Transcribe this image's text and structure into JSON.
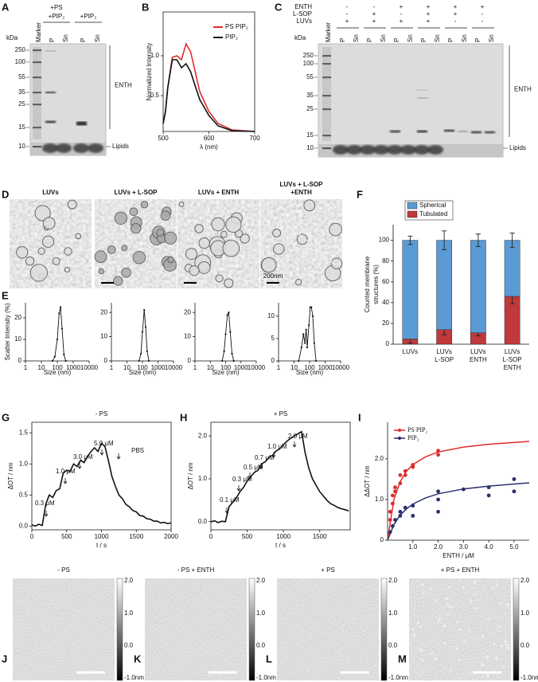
{
  "panels": {
    "A": {
      "label": "A",
      "units": "kDa",
      "markers": [
        250,
        100,
        55,
        35,
        25,
        15,
        10
      ],
      "groups": [
        [
          "+PS",
          "+PIP₂"
        ],
        [
          "+PIP₂"
        ]
      ],
      "lanes": [
        "Marker",
        "P",
        "Sn",
        "P",
        "Sn"
      ],
      "bracket_label": "ENTH",
      "lipids_label": "Lipids"
    },
    "C": {
      "label": "C",
      "units": "kDa",
      "markers": [
        250,
        100,
        55,
        35,
        25,
        15,
        10
      ],
      "conditions": [
        {
          "name": "ENTH",
          "signs": [
            "-",
            "-",
            "+",
            "+",
            "+",
            "+"
          ]
        },
        {
          "name": "L-SOP",
          "signs": [
            "-",
            "+",
            "-",
            "+",
            "+",
            "-"
          ]
        },
        {
          "name": "LUVs",
          "signs": [
            "+",
            "+",
            "+",
            "+",
            "-",
            "-"
          ]
        }
      ],
      "lanes": [
        "Marker",
        "P",
        "Sn",
        "P",
        "Sn",
        "P",
        "Sn",
        "P",
        "Sn",
        "P",
        "Sn",
        "P",
        "Sn"
      ],
      "bracket_label": "ENTH",
      "lipids_label": "Lipids"
    },
    "D": {
      "label": "D",
      "images": [
        [
          "LUVs"
        ],
        [
          "LUVs + L-SOP"
        ],
        [
          "LUVs + ENTH"
        ],
        [
          "LUVs + L-SOP",
          "+ENTH"
        ]
      ],
      "scale_bar": "200nm"
    },
    "JM": {
      "images": [
        {
          "label": "J",
          "title": "- PS"
        },
        {
          "label": "K",
          "title": "- PS + ENTH"
        },
        {
          "label": "L",
          "title": "+ PS"
        },
        {
          "label": "M",
          "title": "+ PS + ENTH"
        }
      ],
      "colorbar": [
        "2.0",
        "1.0",
        "0.0",
        "-1.0nm"
      ]
    }
  },
  "chart_data": [
    {
      "type": "line",
      "label": "B",
      "xlabel": "λ (nm)",
      "ylabel": "Normalized Intensity",
      "x": [
        500,
        505,
        510,
        520,
        530,
        540,
        550,
        560,
        570,
        580,
        600,
        620,
        650,
        700
      ],
      "series": [
        {
          "name": "PS PIP₂",
          "color": "#e02b2b",
          "values": [
            0.15,
            0.3,
            0.6,
            0.98,
            1.0,
            0.95,
            1.15,
            1.05,
            0.8,
            0.55,
            0.3,
            0.15,
            0.07,
            0.05
          ]
        },
        {
          "name": "PIP₂",
          "color": "#111111",
          "values": [
            0.15,
            0.3,
            0.6,
            0.95,
            0.95,
            0.85,
            0.9,
            0.8,
            0.62,
            0.45,
            0.25,
            0.12,
            0.06,
            0.05
          ]
        }
      ],
      "xlim": [
        500,
        700
      ],
      "ylim": [
        0.05,
        1.55
      ],
      "xticks": [
        500,
        600,
        700
      ],
      "yticks": [
        0.5,
        {
          "value": 1,
          "label": "1.0"
        }
      ]
    },
    {
      "type": "line",
      "label": "E",
      "xscale": "log",
      "markers": true,
      "xlabel": "Size (nm)",
      "ylabel": "Scatter Intensity (%)",
      "x": [
        50,
        70,
        100,
        130,
        160,
        200,
        260,
        340
      ],
      "series": [
        {
          "color": "#111111",
          "values": [
            0,
            2,
            10,
            22,
            25,
            15,
            3,
            0
          ]
        }
      ],
      "xlim": [
        1,
        10000
      ],
      "ylim": [
        0,
        27
      ],
      "xticks": [
        1,
        10,
        100,
        1000,
        10000
      ],
      "yticks": [
        0,
        10,
        20
      ]
    },
    {
      "type": "line",
      "xscale": "log",
      "markers": true,
      "xlabel": "Size (nm)",
      "x": [
        60,
        80,
        100,
        130,
        160,
        200,
        260
      ],
      "series": [
        {
          "color": "#111111",
          "values": [
            0,
            3,
            12,
            21,
            14,
            4,
            0
          ]
        }
      ],
      "xlim": [
        1,
        10000
      ],
      "ylim": [
        0,
        24
      ],
      "xticks": [
        1,
        10,
        100,
        1000,
        10000
      ],
      "yticks": [
        0,
        10,
        20
      ]
    },
    {
      "type": "line",
      "xscale": "log",
      "markers": true,
      "xlabel": "Size (nm)",
      "x": [
        60,
        80,
        100,
        130,
        160,
        200,
        260,
        340
      ],
      "series": [
        {
          "color": "#111111",
          "values": [
            0,
            4,
            11,
            19,
            20,
            12,
            3,
            0
          ]
        }
      ],
      "xlim": [
        1,
        10000
      ],
      "ylim": [
        0,
        24
      ],
      "xticks": [
        1,
        10,
        100,
        1000,
        10000
      ],
      "yticks": [
        0,
        10,
        20
      ]
    },
    {
      "type": "line",
      "xscale": "log",
      "markers": true,
      "xlabel": "Size (nm)",
      "x": [
        20,
        30,
        40,
        50,
        60,
        70,
        90,
        110,
        130,
        160,
        200,
        260
      ],
      "series": [
        {
          "color": "#111111",
          "values": [
            0,
            3,
            6,
            4,
            7,
            3,
            8,
            12,
            12,
            10,
            4,
            0
          ]
        }
      ],
      "xlim": [
        1,
        10000
      ],
      "ylim": [
        0,
        13
      ],
      "xticks": [
        1,
        10,
        100,
        1000,
        10000
      ],
      "yticks": [
        0,
        5,
        10
      ]
    },
    {
      "type": "stacked_bar",
      "label": "F",
      "ylabel": [
        "Counted membrane",
        "structures (%)"
      ],
      "categories": [
        [
          "LUVs"
        ],
        [
          "LUVs",
          "L-SOP"
        ],
        [
          "LUVs",
          "ENTH"
        ],
        [
          "LUVs",
          "L-SOP",
          "ENTH"
        ]
      ],
      "series": [
        {
          "name": "Spherical",
          "color": "#5b9bd5",
          "values": [
            95,
            86,
            89,
            54
          ],
          "errors": [
            4,
            9,
            6,
            7
          ]
        },
        {
          "name": "Tubulated",
          "color": "#c0393b",
          "values": [
            5,
            14,
            11,
            46
          ],
          "errors": [
            4,
            5,
            3,
            7
          ]
        }
      ],
      "ylim": [
        0,
        115
      ],
      "yticks": [
        0,
        20,
        40,
        60,
        80,
        100
      ]
    },
    {
      "type": "line",
      "label": "G",
      "title": "- PS",
      "xlabel": "t / s",
      "ylabel": "ΔOT / nm",
      "annotations": [
        "0.3 μM",
        "1.0 μM",
        "3.0 μM",
        "5.0 μM",
        "PBS"
      ],
      "x": [
        0,
        50,
        100,
        150,
        200,
        250,
        300,
        350,
        400,
        450,
        500,
        550,
        600,
        650,
        700,
        750,
        800,
        850,
        900,
        950,
        1000,
        1050,
        1100,
        1150,
        1200,
        1250,
        1300,
        1350,
        1400,
        1450,
        1500,
        1550,
        1600,
        1650,
        1700,
        1750,
        1800,
        1850,
        1900,
        1950,
        2000
      ],
      "series": [
        {
          "color": "#111111",
          "values": [
            0.02,
            0.0,
            0.03,
            0.01,
            0.35,
            0.5,
            0.46,
            0.57,
            0.6,
            0.85,
            0.9,
            0.88,
            1.0,
            0.96,
            1.06,
            1.02,
            1.12,
            1.2,
            1.26,
            1.2,
            1.33,
            1.28,
            1.05,
            0.8,
            0.64,
            0.5,
            0.44,
            0.35,
            0.31,
            0.25,
            0.23,
            0.17,
            0.16,
            0.12,
            0.11,
            0.08,
            0.08,
            0.05,
            0.06,
            0.04,
            0.05
          ]
        }
      ],
      "xlim": [
        0,
        2000
      ],
      "ylim": [
        -0.06,
        1.67
      ],
      "xticks": [
        0,
        500,
        1000,
        1500,
        2000
      ],
      "yticks": [
        {
          "value": 0,
          "label": "0.0"
        },
        0.5,
        {
          "value": 1,
          "label": "1.0"
        },
        1.5
      ]
    },
    {
      "type": "line",
      "label": "H",
      "title": "+ PS",
      "xlabel": "t / s",
      "ylabel": "ΔOT / nm",
      "annotations": [
        "0.1 μM",
        "0.3 μM",
        "0.5 μM",
        "0.7 μM",
        "1.0 μM",
        "2.0 μM"
      ],
      "x": [
        0,
        50,
        100,
        150,
        200,
        250,
        300,
        350,
        400,
        450,
        500,
        550,
        600,
        650,
        700,
        750,
        800,
        850,
        900,
        950,
        1000,
        1050,
        1100,
        1150,
        1200,
        1250,
        1300,
        1350,
        1400,
        1450,
        1500,
        1550,
        1600,
        1650,
        1700,
        1750,
        1800,
        1850,
        1900
      ],
      "series": [
        {
          "color": "#111111",
          "values": [
            0.0,
            0.02,
            -0.02,
            0.01,
            0.0,
            0.35,
            0.45,
            0.55,
            0.7,
            0.8,
            0.95,
            1.05,
            1.15,
            1.2,
            1.35,
            1.4,
            1.5,
            1.55,
            1.65,
            1.7,
            1.8,
            1.88,
            1.95,
            2.0,
            2.05,
            2.1,
            1.6,
            1.25,
            1.0,
            0.85,
            0.7,
            0.6,
            0.5,
            0.42,
            0.38,
            0.33,
            0.3,
            0.28,
            0.25
          ]
        }
      ],
      "xlim": [
        0,
        1920
      ],
      "ylim": [
        -0.19,
        2.32
      ],
      "xticks": [
        0,
        500,
        1000,
        1500
      ],
      "yticks": [
        {
          "value": 0,
          "label": "0.0"
        },
        {
          "value": 1,
          "label": "1.0"
        },
        {
          "value": 2,
          "label": "2.0"
        }
      ]
    },
    {
      "type": "scatter",
      "label": "I",
      "xlabel": "ENTH / μM",
      "ylabel": "ΔΔOT / nm",
      "series": [
        {
          "name": "PS PIP₂",
          "color": "#e02b2b",
          "x": [
            0.1,
            0.1,
            0.2,
            0.2,
            0.3,
            0.3,
            0.5,
            0.5,
            0.7,
            0.7,
            1.0,
            1.0,
            2.0,
            2.0
          ],
          "values": [
            0.5,
            0.7,
            0.9,
            1.1,
            1.2,
            1.3,
            1.4,
            1.6,
            1.6,
            1.7,
            1.8,
            1.85,
            2.1,
            2.2
          ],
          "fit_x": [
            0,
            0.25,
            0.5,
            0.75,
            1,
            1.5,
            2,
            3,
            4,
            5.6
          ],
          "fit_values": [
            0,
            1.0,
            1.44,
            1.7,
            1.86,
            2.05,
            2.17,
            2.29,
            2.36,
            2.43
          ]
        },
        {
          "name": "PIP₂",
          "color": "#2b2f6e",
          "x": [
            0.1,
            0.2,
            0.3,
            0.5,
            0.5,
            0.7,
            1.0,
            1.0,
            2.0,
            2.0,
            2.0,
            3.0,
            4.0,
            4.0,
            5.0,
            5.0
          ],
          "values": [
            0.2,
            0.35,
            0.5,
            0.6,
            0.7,
            0.8,
            0.6,
            0.85,
            0.7,
            1.0,
            1.2,
            1.25,
            1.1,
            1.3,
            1.2,
            1.5
          ],
          "fit_x": [
            0,
            0.25,
            0.5,
            0.75,
            1,
            1.5,
            2,
            3,
            4,
            5.6
          ],
          "fit_values": [
            0,
            0.38,
            0.62,
            0.77,
            0.89,
            1.04,
            1.14,
            1.26,
            1.33,
            1.41
          ]
        }
      ],
      "xlim": [
        0,
        5.6
      ],
      "ylim": [
        0,
        2.9
      ],
      "xticks": [
        {
          "value": 1,
          "label": "1.0"
        },
        {
          "value": 2,
          "label": "2.0"
        },
        {
          "value": 3,
          "label": "3.0"
        },
        {
          "value": 4,
          "label": "4.0"
        },
        {
          "value": 5,
          "label": "5.0"
        }
      ],
      "yticks": [
        0,
        {
          "value": 1,
          "label": "1.0"
        },
        {
          "value": 2,
          "label": "2.0"
        }
      ]
    }
  ]
}
